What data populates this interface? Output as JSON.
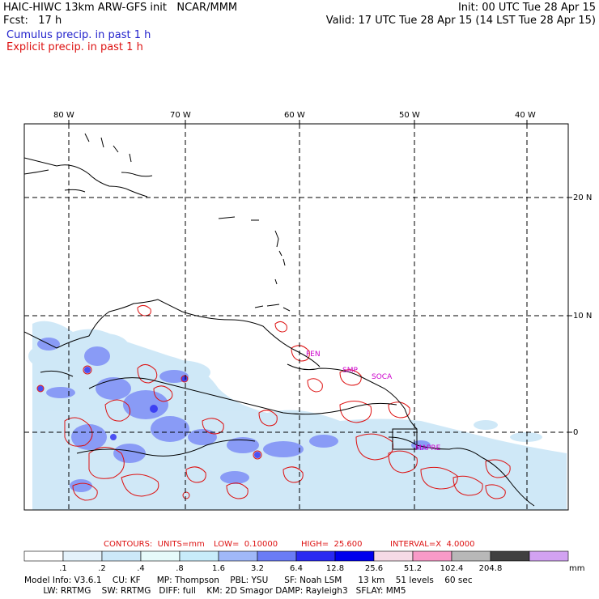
{
  "header": {
    "title": "HAIC-HIWC 13km ARW-GFS init   NCAR/MMM",
    "fcst": "Fcst:   17 h",
    "init": "Init: 00 UTC Tue 28 Apr 15",
    "valid": "Valid: 17 UTC Tue 28 Apr 15 (14 LST Tue 28 Apr 15)",
    "cumulus_label": "Cumulus precip. in past 1 h",
    "explicit_label": "Explicit precip. in past 1 h"
  },
  "map": {
    "lon_labels": [
      "80 W",
      "70 W",
      "60 W",
      "50 W",
      "40 W"
    ],
    "lat_labels": [
      "20 N",
      "10 N",
      "0"
    ],
    "station_labels": [
      "FEN",
      "SMP",
      "SOCA",
      "MAPRE"
    ],
    "colors": {
      "cumulus": "#2222cc",
      "explicit": "#dd1111",
      "station": "#cc00cc"
    }
  },
  "contours": {
    "label": "CONTOURS:  UNITS=mm",
    "low": "LOW=  0.10000",
    "high": "HIGH=  25.600",
    "interval": "INTERVAL=X  4.0000"
  },
  "colorbar": {
    "ticks": [
      ".1",
      ".2",
      ".4",
      ".8",
      "1.6",
      "3.2",
      "6.4",
      "12.8",
      "25.6",
      "51.2",
      "102.4",
      "204.8"
    ],
    "unit": "mm",
    "colors": [
      "#ffffff",
      "#e4f2fb",
      "#cce8f8",
      "#e6fafa",
      "#c8ecfa",
      "#a0b8f8",
      "#6a7cf6",
      "#2a2af2",
      "#0000ee",
      "#f6dae6",
      "#f89ac8",
      "#b8b8b8",
      "#404040",
      "#d2a2f2"
    ]
  },
  "footer": {
    "line1": "Model Info: V3.6.1    CU: KF      MP: Thompson    PBL: YSU      SF: Noah LSM      13 km    51 levels    60 sec",
    "line2": "       LW: RRTMG    SW: RRTMG   DIFF: full    KM: 2D Smagor DAMP: Rayleigh3   SFLAY: MM5"
  }
}
